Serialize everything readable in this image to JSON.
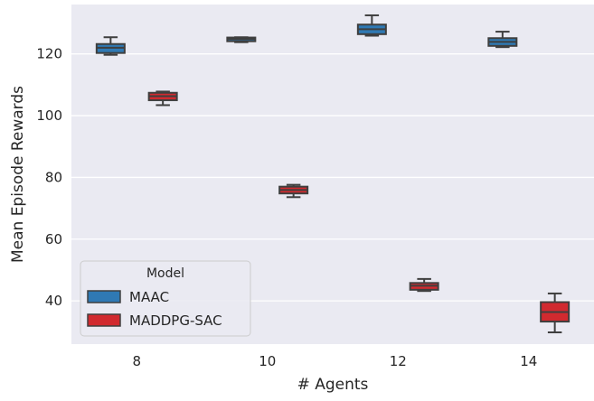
{
  "chart_data": {
    "type": "box",
    "xlabel": "# Agents",
    "ylabel": "Mean Episode Rewards",
    "categories": [
      "8",
      "10",
      "12",
      "14"
    ],
    "ylim": [
      26,
      136
    ],
    "yticks": [
      40,
      60,
      80,
      100,
      120
    ],
    "grid": true,
    "legend": {
      "title": "Model",
      "position": "lower-left"
    },
    "series": [
      {
        "name": "MAAC",
        "color": "#2f79b4",
        "boxes": [
          {
            "min": 119.7,
            "q1": 120.3,
            "median": 122.0,
            "q3": 123.2,
            "max": 125.4
          },
          {
            "min": 123.8,
            "q1": 124.1,
            "median": 124.8,
            "q3": 125.3,
            "max": 125.4
          },
          {
            "min": 125.9,
            "q1": 126.4,
            "median": 128.0,
            "q3": 129.5,
            "max": 132.5
          },
          {
            "min": 122.2,
            "q1": 122.6,
            "median": 123.9,
            "q3": 125.1,
            "max": 127.2
          }
        ]
      },
      {
        "name": "MADDPG-SAC",
        "color": "#d12a2f",
        "boxes": [
          {
            "min": 103.4,
            "q1": 105.0,
            "median": 106.3,
            "q3": 107.4,
            "max": 107.8
          },
          {
            "min": 73.6,
            "q1": 74.8,
            "median": 75.9,
            "q3": 77.0,
            "max": 77.6
          },
          {
            "min": 43.2,
            "q1": 43.6,
            "median": 44.9,
            "q3": 45.8,
            "max": 47.1
          },
          {
            "min": 29.8,
            "q1": 33.3,
            "median": 36.4,
            "q3": 39.6,
            "max": 42.4
          }
        ]
      }
    ]
  }
}
